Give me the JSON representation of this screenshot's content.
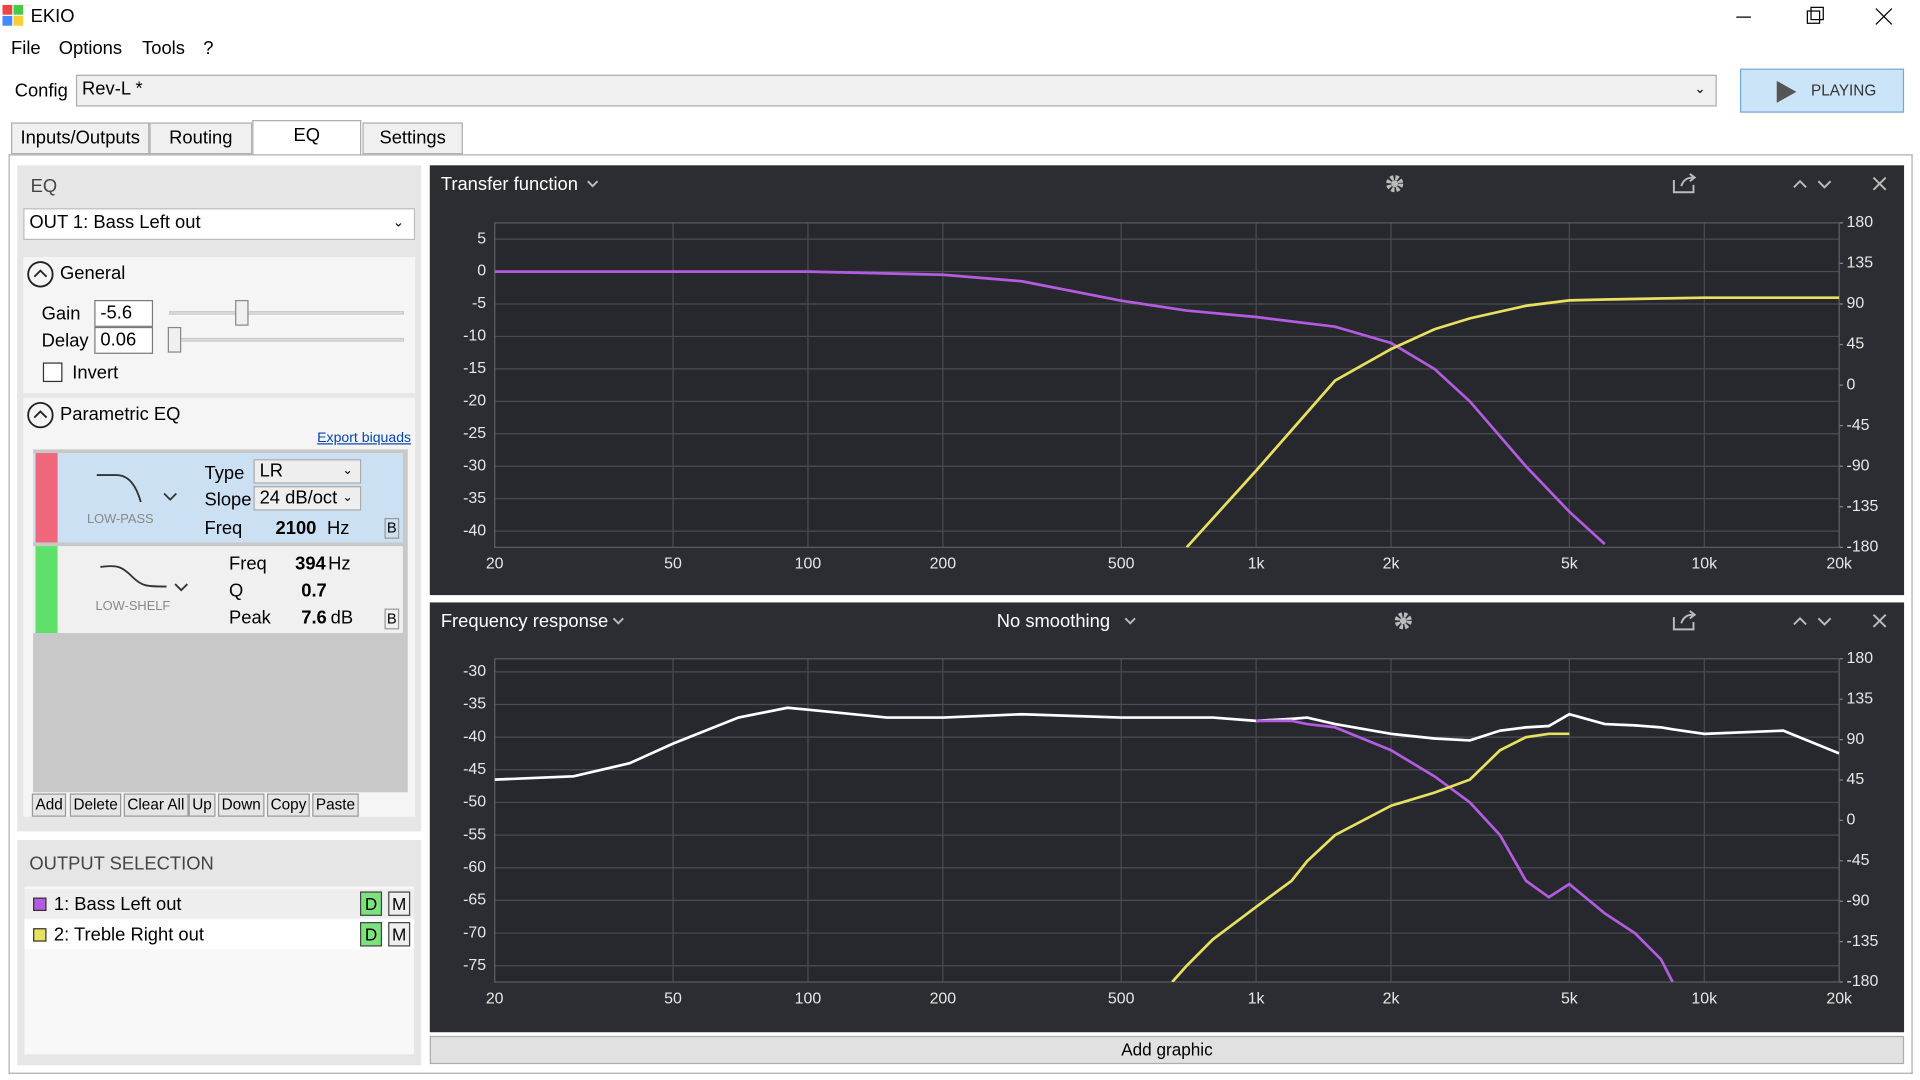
{
  "window": {
    "title": "EKIO"
  },
  "menu": [
    "File",
    "Options",
    "Tools",
    "?"
  ],
  "config": {
    "label": "Config",
    "value": "Rev-L *",
    "play": "PLAYING"
  },
  "tabs": [
    "Inputs/Outputs",
    "Routing",
    "EQ",
    "Settings"
  ],
  "eq_panel": {
    "section": "EQ",
    "output": "OUT 1: Bass Left out",
    "general": "General",
    "gain_label": "Gain",
    "gain": -5.6,
    "delay_label": "Delay",
    "delay": 0.06,
    "invert": "Invert",
    "parametric": "Parametric EQ",
    "export": "Export biquads",
    "filters": [
      {
        "name": "LOW-PASS",
        "type_label": "Type",
        "type": "LR",
        "slope_label": "Slope",
        "slope": "24 dB/oct",
        "freq_label": "Freq",
        "freq": 2100,
        "freq_unit": "Hz",
        "bypass": "B"
      },
      {
        "name": "LOW-SHELF",
        "freq_label": "Freq",
        "freq": 394,
        "freq_unit": "Hz",
        "q_label": "Q",
        "q": 0.7,
        "peak_label": "Peak",
        "peak": 7.6,
        "peak_unit": "dB",
        "bypass": "B"
      }
    ],
    "buttons": [
      "Add",
      "Delete",
      "Clear All",
      "Up",
      "Down",
      "Copy",
      "Paste"
    ]
  },
  "output_selection": {
    "title": "OUTPUT SELECTION",
    "outputs": [
      {
        "name": "1: Bass Left out",
        "color": "#b35ce0",
        "d": "D",
        "m": "M"
      },
      {
        "name": "2: Treble Right out",
        "color": "#e8e060",
        "d": "D",
        "m": "M"
      }
    ]
  },
  "chart_data": [
    {
      "type": "line",
      "title": "Transfer function",
      "log_x": true,
      "grid": true,
      "x": [
        20,
        50,
        100,
        200,
        300,
        500,
        700,
        1000,
        1500,
        2000,
        2500,
        3000,
        4000,
        5000,
        6000,
        10000,
        20000
      ],
      "xlim": [
        20,
        20000
      ],
      "xticks": [
        20,
        50,
        100,
        200,
        500,
        {
          "value": 1000,
          "label": "1k"
        },
        {
          "value": 2000,
          "label": "2k"
        },
        {
          "value": 5000,
          "label": "5k"
        },
        {
          "value": 10000,
          "label": "10k"
        },
        {
          "value": 20000,
          "label": "20k"
        }
      ],
      "ylim": [
        -42.5,
        7.5
      ],
      "yticks": [
        5,
        0,
        -5,
        -10,
        -15,
        -20,
        -25,
        -30,
        -35,
        -40
      ],
      "y2lim": [
        -180,
        180
      ],
      "y2ticks": [
        180,
        135,
        90,
        45,
        0,
        -45,
        -90,
        -135,
        -180
      ],
      "series": [
        {
          "color": "#b35ce0",
          "values": [
            0,
            0,
            0,
            -0.5,
            -1.5,
            -4.5,
            -6,
            -7,
            -8.5,
            -11,
            -15,
            -20,
            -30,
            -37,
            -42,
            null,
            null
          ]
        },
        {
          "color": "#e8e060",
          "axis": "y2",
          "values": [
            null,
            null,
            null,
            null,
            null,
            null,
            -180,
            -95,
            5,
            40,
            62,
            74,
            88,
            94,
            95,
            97,
            97
          ]
        }
      ]
    },
    {
      "type": "line",
      "title": "Frequency response",
      "smoothing": "No smoothing",
      "log_x": true,
      "grid": true,
      "x": [
        20,
        30,
        40,
        50,
        70,
        90,
        100,
        150,
        200,
        300,
        500,
        650,
        700,
        800,
        1000,
        1200,
        1300,
        1500,
        2000,
        2500,
        3000,
        3500,
        4000,
        4500,
        5000,
        6000,
        7000,
        8000,
        8500,
        10000,
        15000,
        20000
      ],
      "xlim": [
        20,
        20000
      ],
      "xticks": [
        20,
        50,
        100,
        200,
        500,
        {
          "value": 1000,
          "label": "1k"
        },
        {
          "value": 2000,
          "label": "2k"
        },
        {
          "value": 5000,
          "label": "5k"
        },
        {
          "value": 10000,
          "label": "10k"
        },
        {
          "value": 20000,
          "label": "20k"
        }
      ],
      "ylim": [
        -77.5,
        -28
      ],
      "yticks": [
        -30,
        -35,
        -40,
        -45,
        -50,
        -55,
        -60,
        -65,
        -70,
        -75
      ],
      "y2lim": [
        -180,
        180
      ],
      "y2ticks": [
        180,
        135,
        90,
        45,
        0,
        -45,
        -90,
        -135,
        -180
      ],
      "series": [
        {
          "color": "#ffffff",
          "values": [
            -46.5,
            -46,
            -44,
            -41,
            -37,
            -35.5,
            -35.8,
            -37,
            -37,
            -36.5,
            -37,
            -37,
            -37,
            -37,
            -37.5,
            -37.2,
            -37,
            -38,
            -39.5,
            -40.2,
            -40.5,
            -39,
            -38.5,
            -38.3,
            -36.5,
            -38,
            -38.2,
            -38.5,
            -38.8,
            -39.5,
            -39,
            -42.5
          ]
        },
        {
          "color": "#b35ce0",
          "values": [
            null,
            null,
            null,
            null,
            null,
            null,
            null,
            null,
            null,
            null,
            null,
            null,
            null,
            null,
            -37.5,
            -37.5,
            -38,
            -38.5,
            -42,
            -46,
            -50,
            -55,
            -62,
            -64.5,
            -62.5,
            -67,
            -70,
            -74,
            -77.5,
            null,
            null,
            null
          ]
        },
        {
          "color": "#e8e060",
          "values": [
            null,
            null,
            null,
            null,
            null,
            null,
            null,
            null,
            null,
            null,
            null,
            -77.5,
            -75,
            -71,
            -66,
            -62,
            -59,
            -55,
            -50.5,
            -48.5,
            -46.5,
            -42,
            -40,
            -39.5,
            -39.5,
            null,
            null,
            null,
            null,
            null,
            null,
            null
          ]
        }
      ]
    }
  ],
  "add_graphic": "Add graphic"
}
